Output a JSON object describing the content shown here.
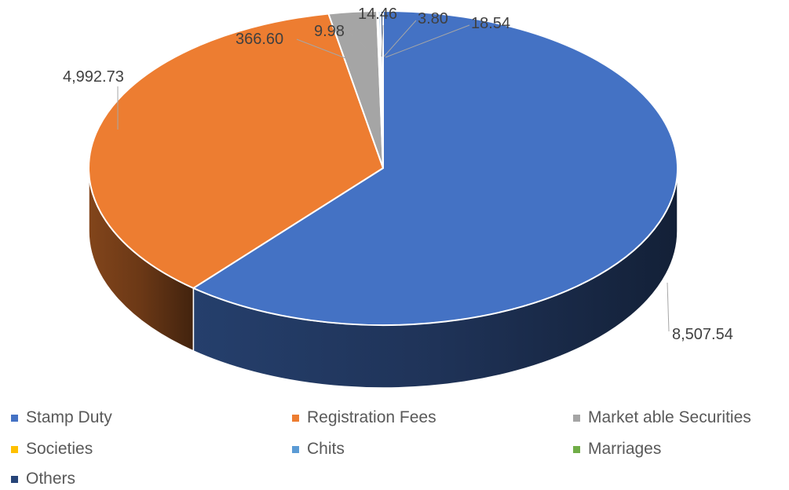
{
  "chart_data": {
    "type": "pie",
    "title": "",
    "categories": [
      "Stamp Duty",
      "Registration Fees",
      "Market able Securities",
      "Societies",
      "Chits",
      "Marriages",
      "Others"
    ],
    "values": [
      8507.54,
      4992.73,
      366.6,
      9.98,
      14.46,
      3.8,
      18.54
    ],
    "data_labels": [
      "8,507.54",
      "4,992.73",
      "366.60",
      "9.98",
      "14.46",
      "3.80",
      "18.54"
    ],
    "colors": [
      "#4472C4",
      "#ED7D31",
      "#A5A5A5",
      "#FFC000",
      "#5B9BD5",
      "#70AD47",
      "#264478"
    ],
    "legend_position": "bottom",
    "three_d": true
  }
}
